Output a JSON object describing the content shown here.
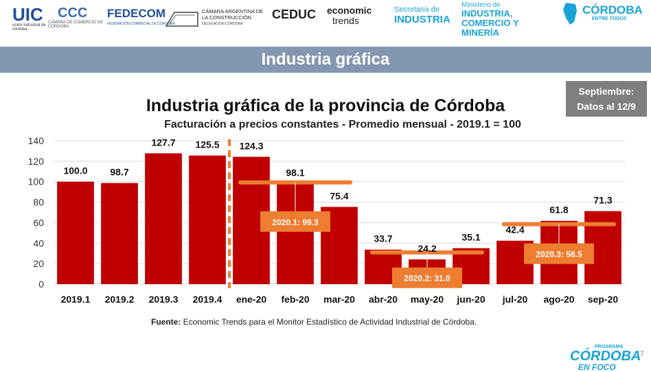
{
  "logos": [
    {
      "name": "uic",
      "main": "UIC",
      "sub": "unión industrial de córdoba"
    },
    {
      "name": "ccc",
      "main": "CCC",
      "sub": "CÁMARA DE COMERCIO DE CÓRDOBA"
    },
    {
      "name": "fedecom",
      "main": "FEDECOM",
      "sub": "FEDERACIÓN COMERCIAL DE CÓRDOBA"
    },
    {
      "name": "camara-construccion",
      "main": "CÁMARA ARGENTINA DE LA CONSTRUCCIÓN",
      "sub": "DELEGACIÓN CÓRDOBA"
    },
    {
      "name": "ceduc",
      "main": "CEDUC",
      "sub": ""
    },
    {
      "name": "economic-trends",
      "main": "economic",
      "sub": "trends"
    },
    {
      "name": "secretaria-industria",
      "main": "INDUSTRIA",
      "sub": "Secretaría de"
    },
    {
      "name": "ministerio",
      "main": "INDUSTRIA, COMERCIO Y MINERÍA",
      "sub": "Ministerio de"
    },
    {
      "name": "cordoba",
      "main": "CÓRDOBA",
      "sub": "ENTRE TODOS"
    }
  ],
  "banner": "Industria gráfica",
  "note": {
    "line1": "Septiembre:",
    "line2": "Datos al 12/9"
  },
  "source_label": "Fuente:",
  "source_text": " Economic Trends para el Monitor Estadístico de Actividad Industrial de Córdoba.",
  "footer_logo": {
    "top": "PROGRAMA",
    "main": "CÓRDOBA",
    "bottom": "EN FOCO"
  },
  "page_number": "7",
  "colors": {
    "bar": "#c00000",
    "banner": "#8497b0",
    "avg_line": "#ed7d31",
    "avg_box": "#ed7d31",
    "divider": "#ed7d31"
  },
  "chart_data": {
    "type": "bar",
    "title": "Industria gráfica de la provincia de Córdoba",
    "subtitle": "Facturación a precios constantes - Promedio mensual - 2019.1 = 100",
    "categories": [
      "2019.1",
      "2019.2",
      "2019.3",
      "2019.4",
      "ene-20",
      "feb-20",
      "mar-20",
      "abr-20",
      "may-20",
      "jun-20",
      "jul-20",
      "ago-20",
      "sep-20"
    ],
    "values": [
      100.0,
      98.7,
      127.7,
      125.5,
      124.3,
      98.1,
      75.4,
      33.7,
      24.2,
      35.1,
      42.4,
      61.8,
      71.3
    ],
    "value_labels": [
      "100.0",
      "98.7",
      "127.7",
      "125.5",
      "124.3",
      "98.1",
      "75.4",
      "33.7",
      "24.2",
      "35.1",
      "42.4",
      "61.8",
      "71.3"
    ],
    "yticks": [
      0,
      20,
      40,
      60,
      80,
      100,
      120,
      140
    ],
    "ylim": [
      0,
      140
    ],
    "grid": true,
    "divider_after_category": "2019.4",
    "quarter_averages": [
      {
        "label": "2020.1: 99.3",
        "value": 99.3,
        "from": "ene-20",
        "to": "mar-20"
      },
      {
        "label": "2020.2: 31.0",
        "value": 31.0,
        "from": "abr-20",
        "to": "jun-20"
      },
      {
        "label": "2020.3: 58.5",
        "value": 58.5,
        "from": "jul-20",
        "to": "sep-20"
      }
    ]
  }
}
